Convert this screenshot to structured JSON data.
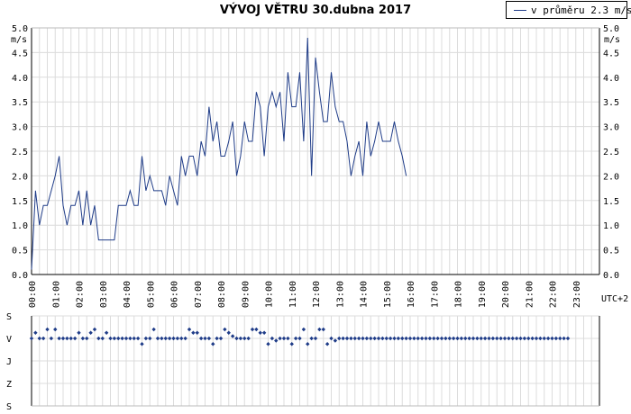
{
  "title": "VÝVOJ VĚTRU  30.dubna 2017",
  "legend": {
    "label": "v průměru 2.3 m/s",
    "color": "#1f3c88"
  },
  "chart_data": [
    {
      "type": "line",
      "title": "VÝVOJ VĚTRU  30.dubna 2017",
      "ylabel": "m/s",
      "xlabel": "UTC+2",
      "ylim": [
        0,
        5
      ],
      "yticks": [
        "0.0",
        "0.5",
        "1.0",
        "1.5",
        "2.0",
        "2.5",
        "3.0",
        "3.5",
        "4.0",
        "4.5",
        "5.0"
      ],
      "xticks": [
        "00:00",
        "01:00",
        "02:00",
        "03:00",
        "04:00",
        "05:00",
        "06:00",
        "07:00",
        "08:00",
        "09:00",
        "10:00",
        "11:00",
        "12:00",
        "13:00",
        "14:00",
        "15:00",
        "16:00",
        "17:00",
        "18:00",
        "19:00",
        "20:00",
        "21:00",
        "22:00",
        "23:00"
      ],
      "grid": true,
      "legend_position": "top-right",
      "series": [
        {
          "name": "v průměru 2.3 m/s",
          "color": "#1f3c88",
          "interval_minutes": 10,
          "values": [
            0.1,
            1.7,
            1.0,
            1.4,
            1.4,
            1.7,
            2.0,
            2.4,
            1.4,
            1.0,
            1.4,
            1.4,
            1.7,
            1.0,
            1.7,
            1.0,
            1.4,
            0.7,
            0.7,
            0.7,
            0.7,
            0.7,
            1.4,
            1.4,
            1.4,
            1.7,
            1.4,
            1.4,
            2.4,
            1.7,
            2.0,
            1.7,
            1.7,
            1.7,
            1.4,
            2.0,
            1.7,
            1.4,
            2.4,
            2.0,
            2.4,
            2.4,
            2.0,
            2.7,
            2.4,
            3.4,
            2.7,
            3.1,
            2.4,
            2.4,
            2.7,
            3.1,
            2.0,
            2.4,
            3.1,
            2.7,
            2.7,
            3.7,
            3.4,
            2.4,
            3.4,
            3.7,
            3.4,
            3.7,
            2.7,
            4.1,
            3.4,
            3.4,
            4.1,
            2.7,
            4.8,
            2.0,
            4.4,
            3.7,
            3.1,
            3.1,
            4.1,
            3.4,
            3.1,
            3.1,
            2.7,
            2.0,
            2.4,
            2.7,
            2.0,
            3.1,
            2.4,
            2.7,
            3.1,
            2.7,
            2.7,
            2.7,
            3.1,
            2.7,
            2.4,
            2.0
          ]
        }
      ]
    },
    {
      "type": "scatter",
      "yticks": [
        "S",
        "V",
        "J",
        "Z",
        "S"
      ],
      "y_meaning": "wind direction (0=S,1=V,2=J,3=Z,4=S)",
      "grid": true,
      "series": [
        {
          "color": "#1f3c88",
          "interval_minutes": 10,
          "values": [
            1.0,
            0.75,
            1.0,
            1.0,
            0.6,
            1.0,
            0.6,
            1.0,
            1.0,
            1.0,
            1.0,
            1.0,
            0.75,
            1.0,
            1.0,
            0.75,
            0.6,
            1.0,
            1.0,
            0.75,
            1.0,
            1.0,
            1.0,
            1.0,
            1.0,
            1.0,
            1.0,
            1.0,
            1.25,
            1.0,
            1.0,
            0.6,
            1.0,
            1.0,
            1.0,
            1.0,
            1.0,
            1.0,
            1.0,
            1.0,
            0.6,
            0.75,
            0.75,
            1.0,
            1.0,
            1.0,
            1.25,
            1.0,
            1.0,
            0.6,
            0.75,
            0.9,
            1.0,
            1.0,
            1.0,
            1.0,
            0.6,
            0.6,
            0.75,
            0.75,
            1.25,
            1.0,
            1.1,
            1.0,
            1.0,
            1.0,
            1.25,
            1.0,
            1.0,
            0.6,
            1.25,
            1.0,
            1.0,
            0.6,
            0.6,
            1.25,
            1.0,
            1.1,
            1.0,
            1.0,
            1.0,
            1.0,
            1.0,
            1.0,
            1.0,
            1.0,
            1.0,
            1.0,
            1.0,
            1.0,
            1.0,
            1.0,
            1.0,
            1.0,
            1.0,
            1.0,
            1.0,
            1.0,
            1.0,
            1.0,
            1.0,
            1.0,
            1.0,
            1.0,
            1.0,
            1.0,
            1.0,
            1.0,
            1.0,
            1.0,
            1.0,
            1.0,
            1.0,
            1.0,
            1.0,
            1.0,
            1.0,
            1.0,
            1.0,
            1.0,
            1.0,
            1.0,
            1.0,
            1.0,
            1.0,
            1.0,
            1.0,
            1.0,
            1.0,
            1.0,
            1.0,
            1.0,
            1.0,
            1.0,
            1.0,
            1.0,
            1.0
          ]
        }
      ]
    }
  ]
}
